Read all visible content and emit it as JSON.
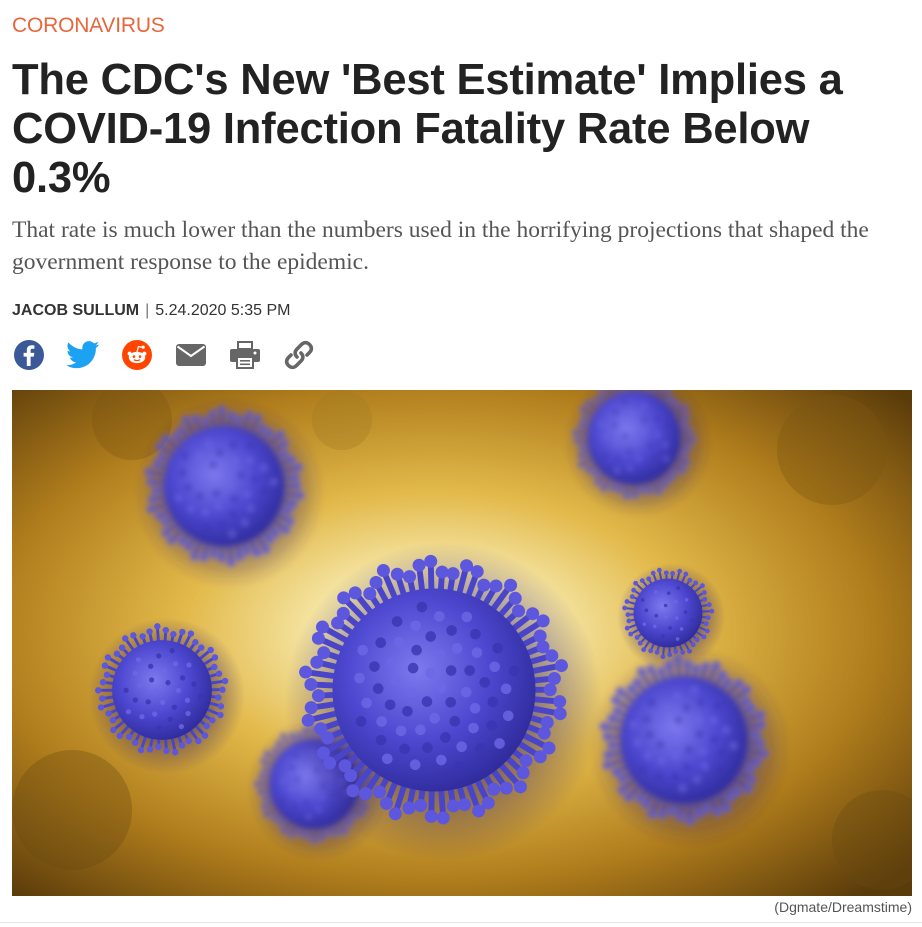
{
  "article": {
    "kicker": "CORONAVIRUS",
    "headline": "The CDC's New 'Best Estimate' Implies a COVID-19 Infection Fatality Rate Below 0.3%",
    "dek": "That rate is much lower than the numbers used in the horrifying projections that shaped the government response to the epidemic.",
    "author": "JACOB SULLUM",
    "separator": "|",
    "date": "5.24.2020 5:35 PM",
    "image_credit": "(Dgmate/Dreamstime)"
  },
  "share": {
    "icons": [
      "facebook-icon",
      "twitter-icon",
      "reddit-icon",
      "email-icon",
      "print-icon",
      "link-icon"
    ]
  },
  "colors": {
    "kicker": "#e8663c",
    "headline": "#222222",
    "dek": "#555555",
    "facebook": "#3b5998",
    "twitter": "#1da1f2",
    "reddit": "#ff4500",
    "utility_icon": "#666666",
    "virus": "#4a45c8"
  }
}
